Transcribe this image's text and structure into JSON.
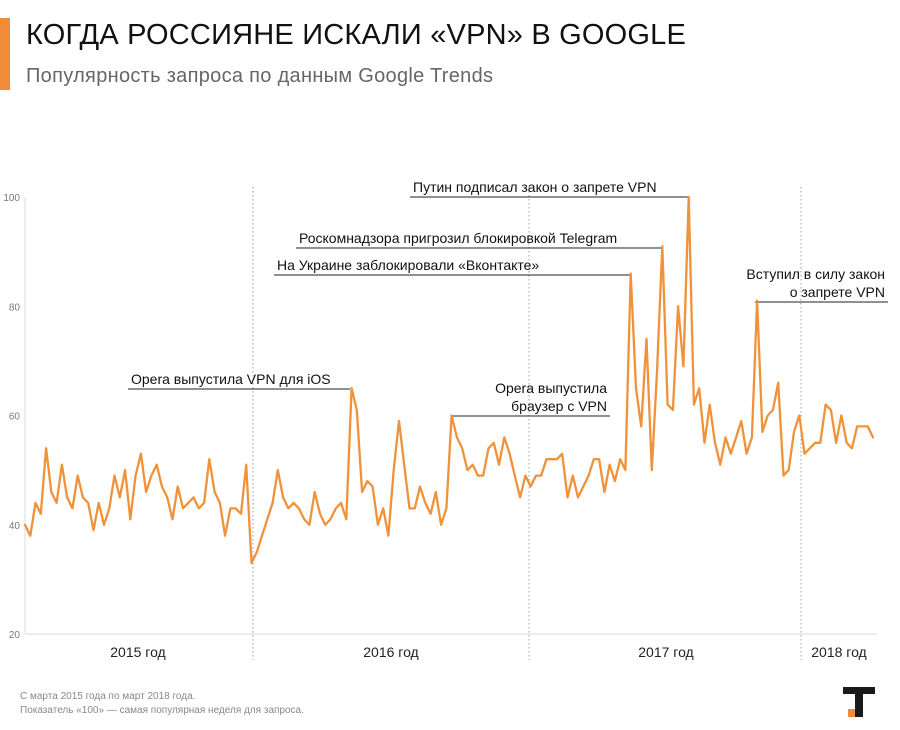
{
  "header": {
    "title": "КОГДА РОССИЯНЕ ИСКАЛИ «VPN» В GOOGLE",
    "subtitle": "Популярность запроса по данным Google Trends"
  },
  "colors": {
    "accent": "#f08c38",
    "line": "#f0923a",
    "grid": "#d9d9d9",
    "axis_text": "#777777",
    "logo_dark": "#1a1a1a"
  },
  "footer": {
    "line1": "С марта 2015 года по март 2018 года.",
    "line2": "Показатель «100» — самая популярная неделя для запроса."
  },
  "logo": {
    "icon": "t-logo-icon"
  },
  "chart_data": {
    "type": "line",
    "title": "",
    "xlabel": "",
    "ylabel": "",
    "ylim": [
      20,
      100
    ],
    "yticks": [
      20,
      40,
      60,
      80,
      100
    ],
    "ytick_labels": [
      "20",
      "40",
      "60",
      "80",
      "100"
    ],
    "grid": false,
    "x": "weeks from March 2015 to March 2018",
    "year_labels": [
      "2015 год",
      "2016 год",
      "2017 год",
      "2018 год"
    ],
    "series": [
      {
        "name": "",
        "values": [
          40,
          38,
          44,
          42,
          54,
          46,
          44,
          51,
          45,
          43,
          49,
          45,
          44,
          39,
          44,
          40,
          43,
          49,
          45,
          50,
          41,
          49,
          53,
          46,
          49,
          51,
          47,
          45,
          41,
          47,
          43,
          44,
          45,
          43,
          44,
          52,
          46,
          44,
          38,
          43,
          43,
          42,
          51,
          33,
          35,
          38,
          41,
          44,
          50,
          45,
          43,
          44,
          43,
          41,
          40,
          46,
          42,
          40,
          41,
          43,
          44,
          41,
          65,
          61,
          46,
          48,
          47,
          40,
          43,
          38,
          50,
          59,
          51,
          43,
          43,
          47,
          44,
          42,
          46,
          40,
          43,
          60,
          56,
          54,
          50,
          51,
          49,
          49,
          54,
          55,
          51,
          56,
          53,
          49,
          45,
          49,
          47,
          49,
          49,
          52,
          52,
          52,
          53,
          45,
          49,
          45,
          47,
          49,
          52,
          52,
          46,
          51,
          48,
          52,
          50,
          86,
          65,
          58,
          74,
          50,
          68,
          91,
          62,
          61,
          80,
          69,
          100,
          62,
          65,
          55,
          62,
          55,
          51,
          56,
          53,
          56,
          59,
          53,
          56,
          81,
          57,
          60,
          61,
          66,
          49,
          50,
          57,
          60,
          53,
          54,
          55,
          55,
          62,
          61,
          55,
          60,
          55,
          54,
          58,
          58,
          58,
          56
        ]
      }
    ],
    "annotations": [
      {
        "text": "Opera выпустила VPN для iOS",
        "value": 65
      },
      {
        "text": "Opera выпустила",
        "text2": "браузер с VPN",
        "value": 60
      },
      {
        "text": "На Украине заблокировали «Вконтакте»",
        "value": 86
      },
      {
        "text": "Роскомнадзора пригрозил блокировкой Telegram",
        "value": 91
      },
      {
        "text": "Путин подписал закон о запрете VPN",
        "value": 100
      },
      {
        "text": "Вступил в силу закон",
        "text2": "о запрете VPN",
        "value": 81
      }
    ]
  }
}
